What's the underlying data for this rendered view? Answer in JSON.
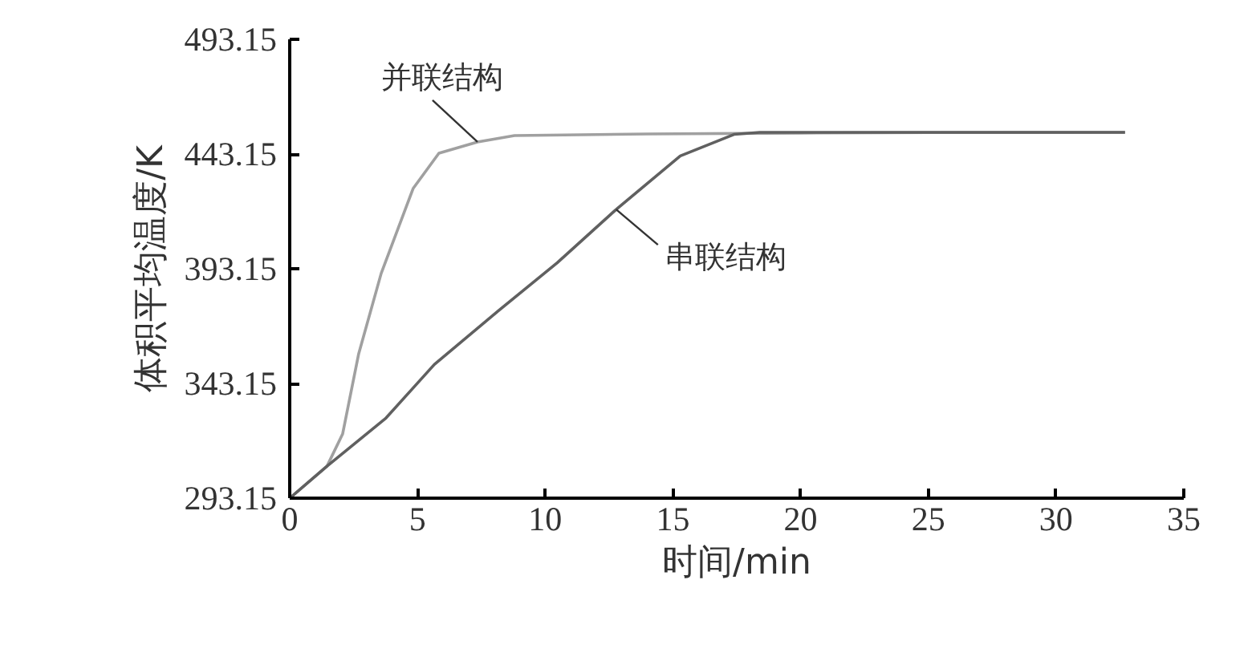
{
  "chart_data": {
    "type": "line",
    "xlabel": "时间/min",
    "ylabel": "体积平均温度/K",
    "xlim": [
      0,
      35
    ],
    "ylim": [
      293.15,
      493.15
    ],
    "xticks": [
      0,
      5,
      10,
      15,
      20,
      25,
      30,
      35
    ],
    "yticks": [
      293.15,
      343.15,
      393.15,
      443.15,
      493.15
    ],
    "grid": false,
    "marker": "none",
    "line_style": "solid",
    "series": [
      {
        "name": "并联结构",
        "color": "#a0a0a0",
        "x": [
          0,
          1.46,
          2.07,
          2.7,
          3.58,
          4.83,
          5.84,
          7.35,
          8.8,
          14,
          20,
          25,
          32.7
        ],
        "values": [
          293.15,
          307.1,
          321.1,
          356.1,
          391.1,
          428.1,
          443.5,
          448.4,
          451.2,
          451.9,
          452.3,
          452.5,
          452.6
        ]
      },
      {
        "name": "串联结构",
        "color": "#606060",
        "x": [
          0,
          1.46,
          3.77,
          5.66,
          8.17,
          10.47,
          12.78,
          15.29,
          17.39,
          18.4,
          25,
          32.7
        ],
        "values": [
          293.15,
          307.1,
          328.1,
          351.4,
          374.8,
          395.7,
          419.0,
          442.3,
          451.7,
          452.6,
          452.6,
          452.6
        ]
      }
    ]
  }
}
